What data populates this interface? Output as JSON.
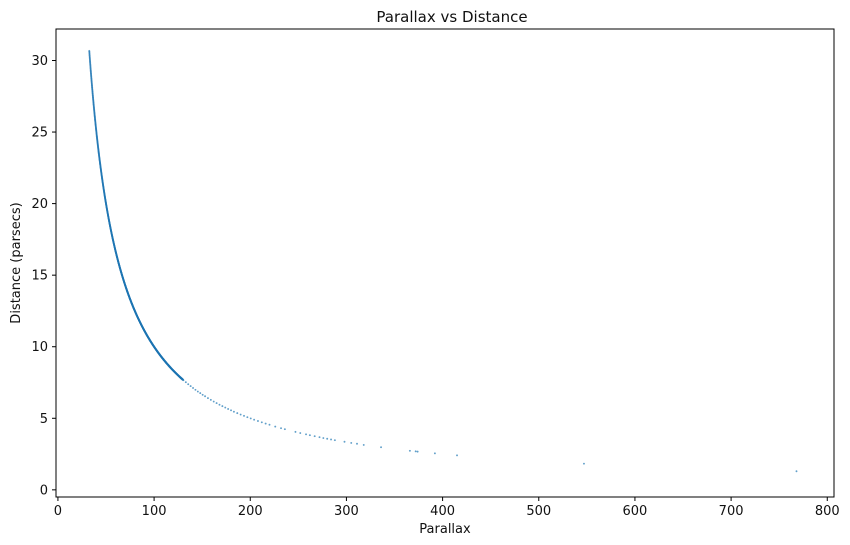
{
  "chart_data": {
    "type": "scatter",
    "title": "Parallax vs Distance",
    "xlabel": "Parallax",
    "ylabel": "Distance (parsecs)",
    "xlim": [
      -2,
      807
    ],
    "ylim": [
      -0.5,
      32.2
    ],
    "xticks": [
      0,
      100,
      200,
      300,
      400,
      500,
      600,
      700,
      800
    ],
    "yticks": [
      0,
      5,
      10,
      15,
      20,
      25,
      30
    ],
    "xtick_labels": [
      "0",
      "100",
      "200",
      "300",
      "400",
      "500",
      "600",
      "700",
      "800"
    ],
    "ytick_labels": [
      "0",
      "5",
      "10",
      "15",
      "20",
      "25",
      "30"
    ],
    "grid": false,
    "legend": "none",
    "point_color": "#1f77b4",
    "relationship": "distance = 1000 / parallax",
    "dense_range": {
      "x_from": 32.6,
      "x_to": 130.0
    },
    "series": [
      {
        "points": [
          [
            130.5,
            7.66
          ],
          [
            133.0,
            7.52
          ],
          [
            135.5,
            7.38
          ],
          [
            138.0,
            7.25
          ],
          [
            140.5,
            7.12
          ],
          [
            143.0,
            6.99
          ],
          [
            145.5,
            6.87
          ],
          [
            148.0,
            6.76
          ],
          [
            150.5,
            6.64
          ],
          [
            153.0,
            6.54
          ],
          [
            156.0,
            6.41
          ],
          [
            159.0,
            6.29
          ],
          [
            162.0,
            6.17
          ],
          [
            165.0,
            6.06
          ],
          [
            168.0,
            5.95
          ],
          [
            171.0,
            5.85
          ],
          [
            174.0,
            5.75
          ],
          [
            177.0,
            5.65
          ],
          [
            180.0,
            5.56
          ],
          [
            183.0,
            5.46
          ],
          [
            186.5,
            5.36
          ],
          [
            190.0,
            5.26
          ],
          [
            193.5,
            5.17
          ],
          [
            197.0,
            5.08
          ],
          [
            200.5,
            4.99
          ],
          [
            204.0,
            4.9
          ],
          [
            208.0,
            4.81
          ],
          [
            212.0,
            4.72
          ],
          [
            216.0,
            4.63
          ],
          [
            220.0,
            4.55
          ],
          [
            226.0,
            4.42
          ],
          [
            232.0,
            4.31
          ],
          [
            236.0,
            4.24
          ],
          [
            247.0,
            4.05
          ],
          [
            252.0,
            3.97
          ],
          [
            258.0,
            3.88
          ],
          [
            262.0,
            3.82
          ],
          [
            267.0,
            3.75
          ],
          [
            272.0,
            3.68
          ],
          [
            276.0,
            3.62
          ],
          [
            280.0,
            3.57
          ],
          [
            284.0,
            3.52
          ],
          [
            288.0,
            3.47
          ],
          [
            298.0,
            3.36
          ],
          [
            305.0,
            3.28
          ],
          [
            311.0,
            3.22
          ],
          [
            318.0,
            3.14
          ],
          [
            336.0,
            2.98
          ],
          [
            366.0,
            2.73
          ],
          [
            372.0,
            2.69
          ],
          [
            374.0,
            2.67
          ],
          [
            392.0,
            2.55
          ],
          [
            415.0,
            2.41
          ],
          [
            547.0,
            1.83
          ],
          [
            768.0,
            1.3
          ]
        ]
      }
    ]
  }
}
